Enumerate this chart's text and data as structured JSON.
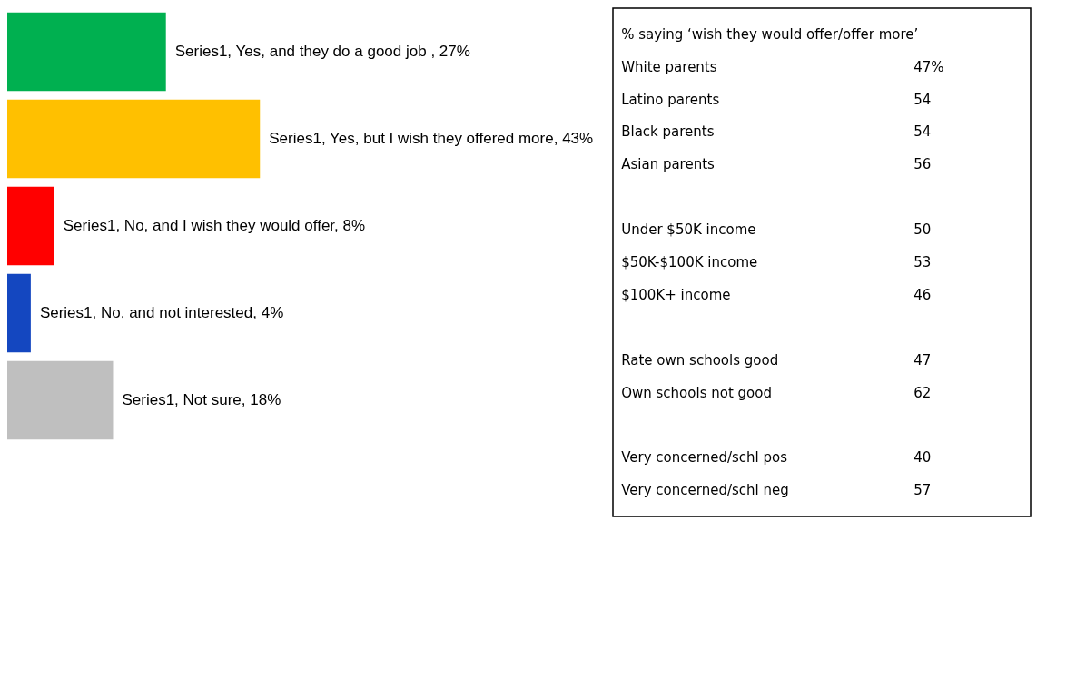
{
  "chart_data": {
    "type": "bar",
    "orientation": "horizontal",
    "categories": [
      null,
      null,
      null,
      null,
      null
    ],
    "series": [
      {
        "values": [
          27,
          43,
          8,
          4,
          18
        ],
        "colors": [
          "#00b050",
          "#ffc000",
          "#ff0000",
          "#1447c0",
          "#bfbfbf"
        ],
        "value_labels": [
          "Series1, Yes, and they do a good job , 27%",
          "Series1, Yes, but I wish they offered more, 43%",
          "Series1, No, and I wish they would offer, 8%",
          "Series1, No, and not interested, 4%",
          "Series1, Not sure, 18%"
        ]
      }
    ],
    "annotations": [
      "% saying ‘wish they would offer/offer more’",
      "White parents",
      "47%",
      "Latino parents",
      "54",
      "Black parents",
      "54",
      "Asian parents",
      "56",
      "Under $50K income",
      "50",
      "$50K-$100K income",
      "53",
      "$100K+ income",
      "46",
      "Rate own schools good",
      "47",
      "Own schools not good",
      "62",
      "Very concerned/schl pos",
      "40",
      "Very concerned/schl neg",
      "57"
    ]
  }
}
